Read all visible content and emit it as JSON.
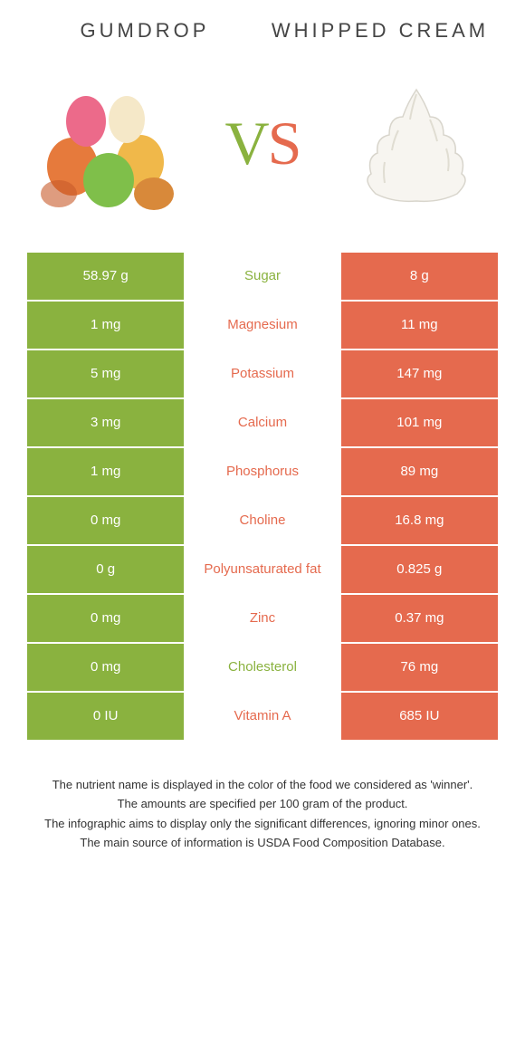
{
  "colors": {
    "left": "#8ab23f",
    "right": "#e56a4e",
    "bg": "#ffffff",
    "text": "#333333"
  },
  "header": {
    "left_title": "Gumdrop",
    "right_title": "Whipped cream",
    "vs_v": "V",
    "vs_s": "S"
  },
  "rows": [
    {
      "label": "Sugar",
      "left": "58.97 g",
      "right": "8 g",
      "winner": "left"
    },
    {
      "label": "Magnesium",
      "left": "1 mg",
      "right": "11 mg",
      "winner": "right"
    },
    {
      "label": "Potassium",
      "left": "5 mg",
      "right": "147 mg",
      "winner": "right"
    },
    {
      "label": "Calcium",
      "left": "3 mg",
      "right": "101 mg",
      "winner": "right"
    },
    {
      "label": "Phosphorus",
      "left": "1 mg",
      "right": "89 mg",
      "winner": "right"
    },
    {
      "label": "Choline",
      "left": "0 mg",
      "right": "16.8 mg",
      "winner": "right"
    },
    {
      "label": "Polyunsaturated fat",
      "left": "0 g",
      "right": "0.825 g",
      "winner": "right"
    },
    {
      "label": "Zinc",
      "left": "0 mg",
      "right": "0.37 mg",
      "winner": "right"
    },
    {
      "label": "Cholesterol",
      "left": "0 mg",
      "right": "76 mg",
      "winner": "left"
    },
    {
      "label": "Vitamin A",
      "left": "0 IU",
      "right": "685 IU",
      "winner": "right"
    }
  ],
  "footer": {
    "line1": "The nutrient name is displayed in the color of the food we considered as 'winner'.",
    "line2": "The amounts are specified per 100 gram of the product.",
    "line3": "The infographic aims to display only the significant differences, ignoring minor ones.",
    "line4": "The main source of information is USDA Food Composition Database."
  }
}
